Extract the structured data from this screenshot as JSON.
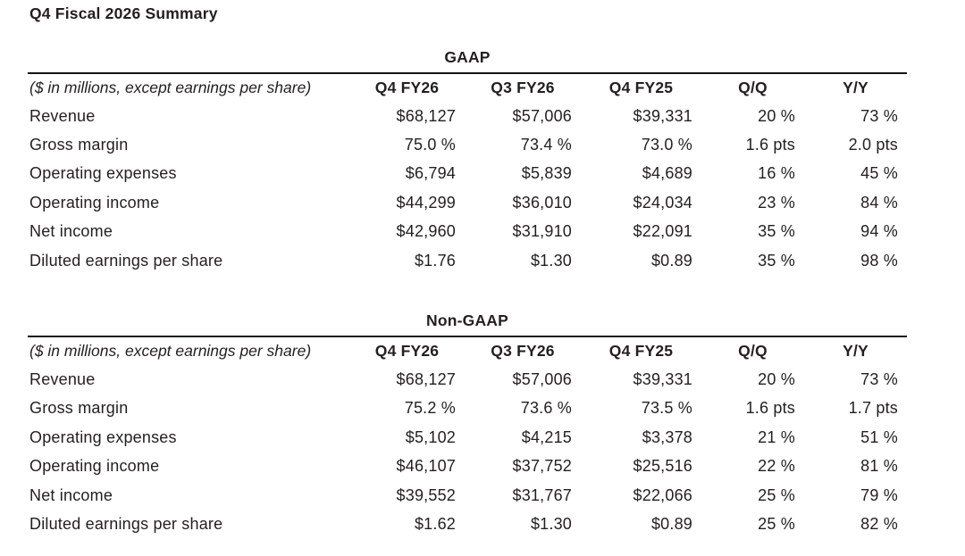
{
  "page_title": "Q4 Fiscal 2026 Summary",
  "colors": {
    "background": "#ffffff",
    "text": "#221f1f",
    "rule": "#141414"
  },
  "tables": [
    {
      "title": "GAAP",
      "note": "($ in millions, except earnings per share)",
      "columns": [
        "Q4 FY26",
        "Q3 FY26",
        "Q4 FY25",
        "Q/Q",
        "Y/Y"
      ],
      "rows": [
        {
          "label": "Revenue",
          "values": [
            "$68,127",
            "$57,006",
            "$39,331",
            "20 %",
            "73 %"
          ]
        },
        {
          "label": "Gross margin",
          "values": [
            "75.0 %",
            "73.4 %",
            "73.0 %",
            "1.6 pts",
            "2.0 pts"
          ]
        },
        {
          "label": "Operating expenses",
          "values": [
            "$6,794",
            "$5,839",
            "$4,689",
            "16 %",
            "45 %"
          ]
        },
        {
          "label": "Operating income",
          "values": [
            "$44,299",
            "$36,010",
            "$24,034",
            "23 %",
            "84 %"
          ]
        },
        {
          "label": "Net income",
          "values": [
            "$42,960",
            "$31,910",
            "$22,091",
            "35 %",
            "94 %"
          ]
        },
        {
          "label": "Diluted earnings per share",
          "values": [
            "$1.76",
            "$1.30",
            "$0.89",
            "35 %",
            "98 %"
          ]
        }
      ]
    },
    {
      "title": "Non-GAAP",
      "note": "($ in millions, except earnings per share)",
      "columns": [
        "Q4 FY26",
        "Q3 FY26",
        "Q4 FY25",
        "Q/Q",
        "Y/Y"
      ],
      "rows": [
        {
          "label": "Revenue",
          "values": [
            "$68,127",
            "$57,006",
            "$39,331",
            "20 %",
            "73 %"
          ]
        },
        {
          "label": "Gross margin",
          "values": [
            "75.2 %",
            "73.6 %",
            "73.5 %",
            "1.6 pts",
            "1.7 pts"
          ]
        },
        {
          "label": "Operating expenses",
          "values": [
            "$5,102",
            "$4,215",
            "$3,378",
            "21 %",
            "51 %"
          ]
        },
        {
          "label": "Operating income",
          "values": [
            "$46,107",
            "$37,752",
            "$25,516",
            "22 %",
            "81 %"
          ]
        },
        {
          "label": "Net income",
          "values": [
            "$39,552",
            "$31,767",
            "$22,066",
            "25 %",
            "79 %"
          ]
        },
        {
          "label": "Diluted earnings per share",
          "values": [
            "$1.62",
            "$1.30",
            "$0.89",
            "25 %",
            "82 %"
          ]
        }
      ]
    }
  ]
}
